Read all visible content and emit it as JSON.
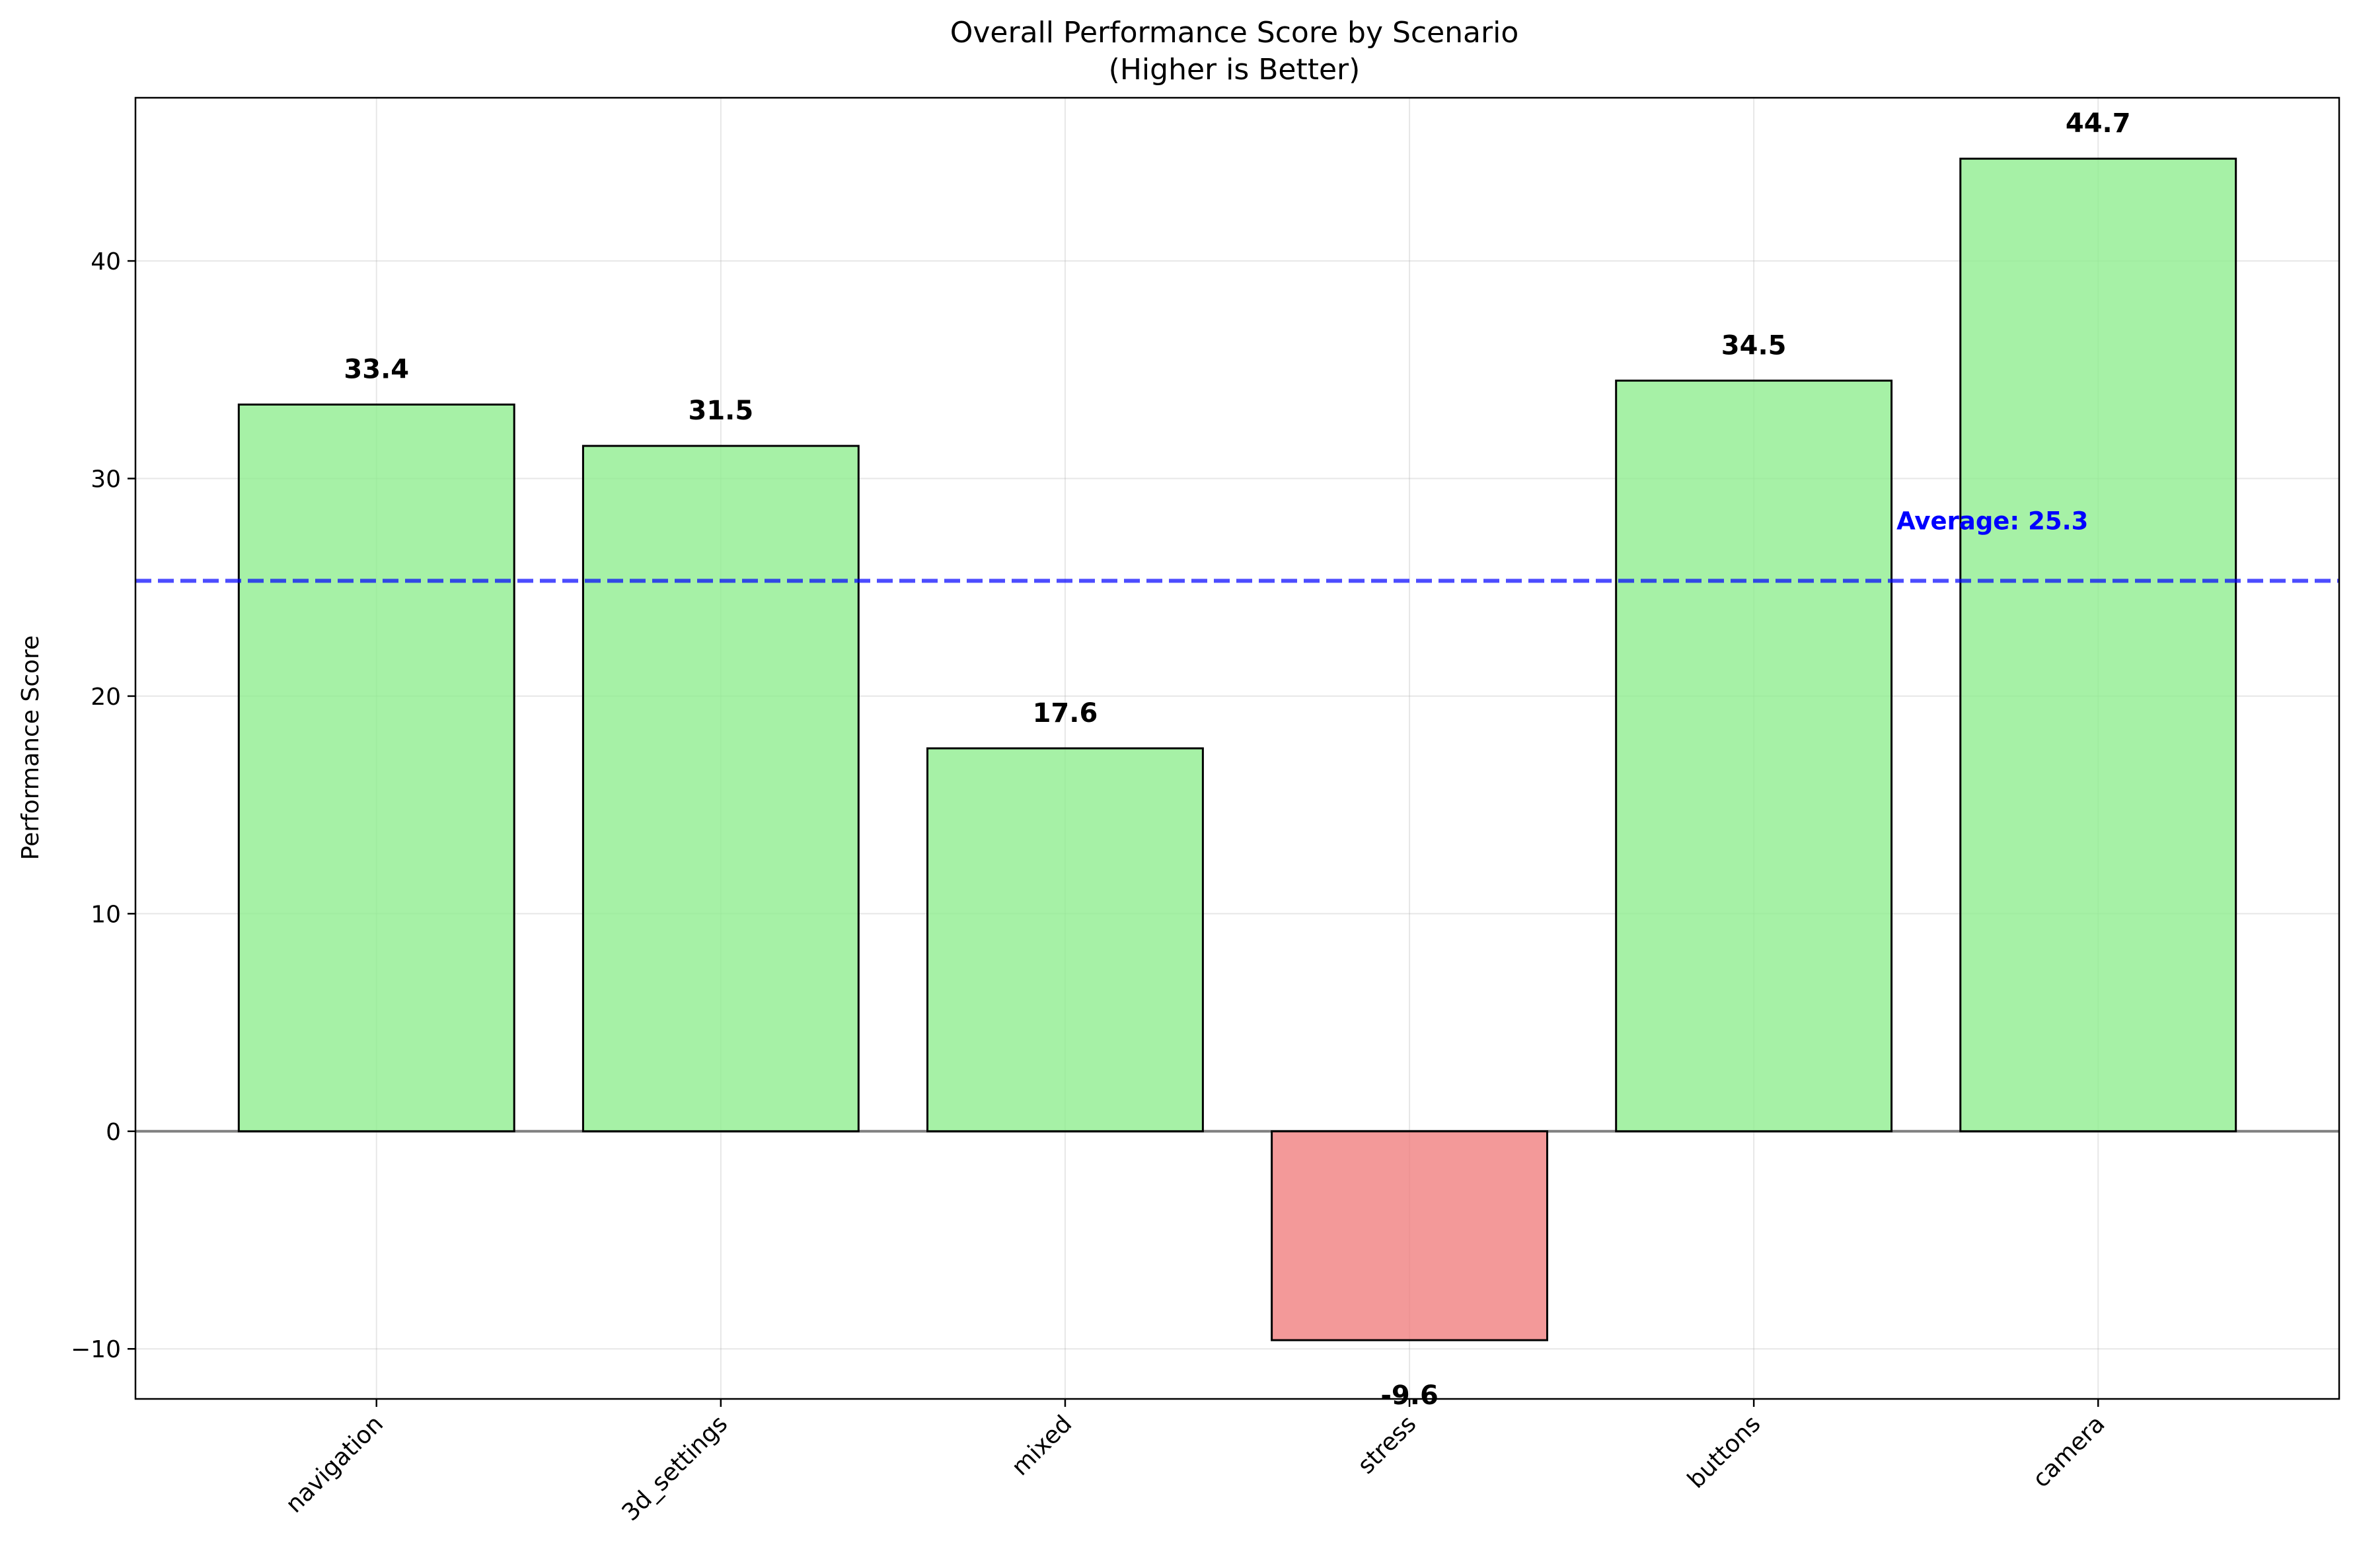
{
  "chart_data": {
    "type": "bar",
    "title": "Overall Performance Score by Scenario",
    "subtitle": "(Higher is Better)",
    "xlabel": "",
    "ylabel": "Performance Score",
    "categories": [
      "navigation",
      "3d_settings",
      "mixed",
      "stress",
      "buttons",
      "camera"
    ],
    "values": [
      33.4,
      31.5,
      17.6,
      -9.6,
      34.5,
      44.7
    ],
    "value_labels": [
      "33.4",
      "31.5",
      "17.6",
      "-9.6",
      "34.5",
      "44.7"
    ],
    "ylim": [
      -12.3,
      47.5
    ],
    "yticks": [
      -10,
      0,
      10,
      20,
      30,
      40
    ],
    "ytick_labels": [
      "−10",
      "0",
      "10",
      "20",
      "30",
      "40"
    ],
    "grid": true,
    "average": {
      "value": 25.3,
      "label": "Average: 25.3",
      "color": "#0000ff"
    },
    "colors": {
      "positive": "#90ee90",
      "negative": "#f08080",
      "edge": "#000000",
      "zero_line": "#808080"
    }
  }
}
